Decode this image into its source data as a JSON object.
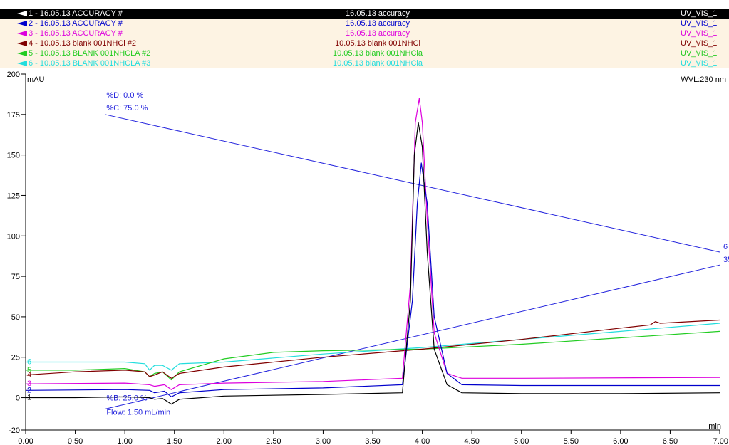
{
  "legend": [
    {
      "name": "1 - 16.05.13 ACCURACY #",
      "sample": "16.05.13 accuracy",
      "detector": "UV_VIS_1",
      "color": "#000000",
      "selected": true
    },
    {
      "name": "2 - 16.05.13 ACCURACY #",
      "sample": "16.05.13 accuracy",
      "detector": "UV_VIS_1",
      "color": "#0000cc",
      "selected": false
    },
    {
      "name": "3 - 16.05.13 ACCURACY #",
      "sample": "16.05.13 accuracy",
      "detector": "UV_VIS_1",
      "color": "#dd00dd",
      "selected": false
    },
    {
      "name": "4 - 10.05.13 blank 001NHCl #2",
      "sample": "10.05.13 blank 001NHCl",
      "detector": "UV_VIS_1",
      "color": "#800000",
      "selected": false
    },
    {
      "name": "5 - 10.05.13 BLANK 001NHCLA #2",
      "sample": "10.05.13 blank 001NHCla",
      "detector": "UV_VIS_1",
      "color": "#22cc22",
      "selected": false
    },
    {
      "name": "6 - 10.05.13 BLANK 001NHCLA #3",
      "sample": "10.05.13 blank 001NHCla",
      "detector": "UV_VIS_1",
      "color": "#22dddd",
      "selected": false
    }
  ],
  "chart_data": {
    "type": "line",
    "ylabel": "mAU",
    "xlabel": "min",
    "wavelength_label": "WVL:230 nm",
    "xlim": [
      0.0,
      7.0
    ],
    "ylim": [
      -20,
      200
    ],
    "x_ticks": [
      "0.00",
      "0.50",
      "1.00",
      "1.50",
      "2.00",
      "2.50",
      "3.00",
      "3.50",
      "4.00",
      "4.50",
      "5.00",
      "5.50",
      "6.00",
      "6.50",
      "7.00"
    ],
    "y_ticks": [
      "-20",
      "0",
      "25",
      "50",
      "75",
      "100",
      "125",
      "150",
      "175",
      "200"
    ],
    "grid": false,
    "series": [
      {
        "name": "1",
        "color": "#000000",
        "x": [
          0,
          0.5,
          1.0,
          1.25,
          1.3,
          1.38,
          1.42,
          1.47,
          1.55,
          2.0,
          3.0,
          3.8,
          3.88,
          3.92,
          3.96,
          4.0,
          4.05,
          4.12,
          4.25,
          4.4,
          5.0,
          6.0,
          7.0
        ],
        "y": [
          0,
          0,
          0.5,
          0,
          -1,
          -0.5,
          -2,
          -4,
          -1,
          1,
          2,
          3,
          60,
          150,
          170,
          155,
          90,
          30,
          8,
          3,
          2.5,
          2.5,
          3
        ]
      },
      {
        "name": "2",
        "color": "#0000cc",
        "x": [
          0,
          1.0,
          1.25,
          1.3,
          1.4,
          1.47,
          1.55,
          2.0,
          3.0,
          3.8,
          3.9,
          3.95,
          3.99,
          4.05,
          4.12,
          4.25,
          4.4,
          5.0,
          7.0
        ],
        "y": [
          4.5,
          5,
          4.5,
          3,
          4,
          0.5,
          3,
          5,
          6,
          8,
          60,
          120,
          145,
          120,
          50,
          15,
          8,
          7.5,
          7.5
        ]
      },
      {
        "name": "3",
        "color": "#dd00dd",
        "x": [
          0,
          1.0,
          1.25,
          1.3,
          1.4,
          1.47,
          1.55,
          2.0,
          3.0,
          3.8,
          3.88,
          3.93,
          3.97,
          4.0,
          4.05,
          4.12,
          4.25,
          4.4,
          5.0,
          7.0
        ],
        "y": [
          8.5,
          9,
          8,
          7,
          8,
          5,
          8,
          9,
          10,
          12,
          70,
          170,
          185,
          170,
          110,
          40,
          15,
          12,
          12,
          12.5
        ]
      },
      {
        "name": "4",
        "color": "#800000",
        "x": [
          0,
          0.5,
          1.0,
          1.2,
          1.25,
          1.3,
          1.38,
          1.47,
          1.55,
          2.0,
          3.0,
          4.0,
          5.0,
          6.0,
          6.3,
          6.35,
          6.4,
          7.0
        ],
        "y": [
          14,
          16,
          17,
          16,
          13,
          14,
          16,
          12,
          15,
          19,
          25,
          30,
          36,
          43,
          45,
          47,
          46,
          48
        ]
      },
      {
        "name": "5",
        "color": "#22cc22",
        "x": [
          0,
          0.5,
          1.0,
          1.2,
          1.25,
          1.3,
          1.38,
          1.47,
          1.55,
          2.0,
          2.5,
          3.0,
          4.0,
          5.0,
          6.0,
          7.0
        ],
        "y": [
          17,
          17,
          18,
          16,
          13,
          15,
          16,
          11,
          16,
          24,
          28,
          29,
          30,
          33,
          37,
          41
        ]
      },
      {
        "name": "6",
        "color": "#22dddd",
        "x": [
          0,
          0.5,
          1.0,
          1.2,
          1.25,
          1.3,
          1.38,
          1.47,
          1.55,
          2.0,
          3.0,
          4.0,
          5.0,
          6.0,
          7.0
        ],
        "y": [
          22,
          22,
          22,
          21,
          17,
          20,
          20,
          17,
          21,
          22,
          27,
          31,
          36,
          41,
          46
        ]
      }
    ],
    "gradient_c": {
      "label_d": "%D: 0.0 %",
      "label_c": "%C: 75.0 %",
      "end_label": "6",
      "color": "#2222dd",
      "x": [
        0.8,
        7.0
      ],
      "y": [
        175,
        90
      ]
    },
    "gradient_b": {
      "label_b": "%B: 25.0 %",
      "label_flow": "Flow: 1.50 mL/min",
      "end_label": "35",
      "color": "#2222dd",
      "x": [
        0.8,
        7.0
      ],
      "y": [
        -7,
        82
      ]
    }
  }
}
